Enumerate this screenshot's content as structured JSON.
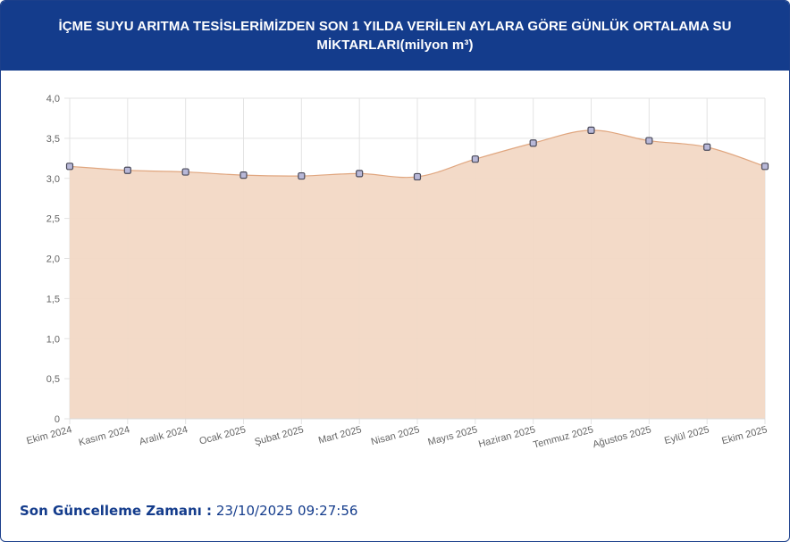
{
  "header": {
    "title": "İÇME SUYU ARITMA TESİSLERİMİZDEN SON 1 YILDA VERİLEN AYLARA GÖRE GÜNLÜK ORTALAMA SU MİKTARLARI(milyon m³)"
  },
  "footer": {
    "label": "Son Güncelleme Zamanı :",
    "value": "23/10/2025 09:27:56"
  },
  "colors": {
    "header_bg": "#143c8c",
    "area_fill": "#f2d8c5",
    "line": "#e0a67f",
    "point_fill": "#b8b8d8",
    "point_stroke": "#4a4a5a"
  },
  "chart_data": {
    "type": "area",
    "categories": [
      "Ekim 2024",
      "Kasım 2024",
      "Aralık 2024",
      "Ocak 2025",
      "Şubat 2025",
      "Mart 2025",
      "Nisan 2025",
      "Mayıs 2025",
      "Haziran 2025",
      "Temmuz 2025",
      "Ağustos 2025",
      "Eylül 2025",
      "Ekim 2025"
    ],
    "series": [
      {
        "values": [
          3.15,
          3.1,
          3.08,
          3.04,
          3.03,
          3.06,
          3.02,
          3.24,
          3.44,
          3.6,
          3.47,
          3.39,
          3.15
        ]
      }
    ],
    "ylim": [
      0,
      4.0
    ],
    "yticks": [
      "0",
      "0,5",
      "1,0",
      "1,5",
      "2,0",
      "2,5",
      "3,0",
      "3,5",
      "4,0"
    ],
    "grid": true,
    "legend": "none"
  }
}
